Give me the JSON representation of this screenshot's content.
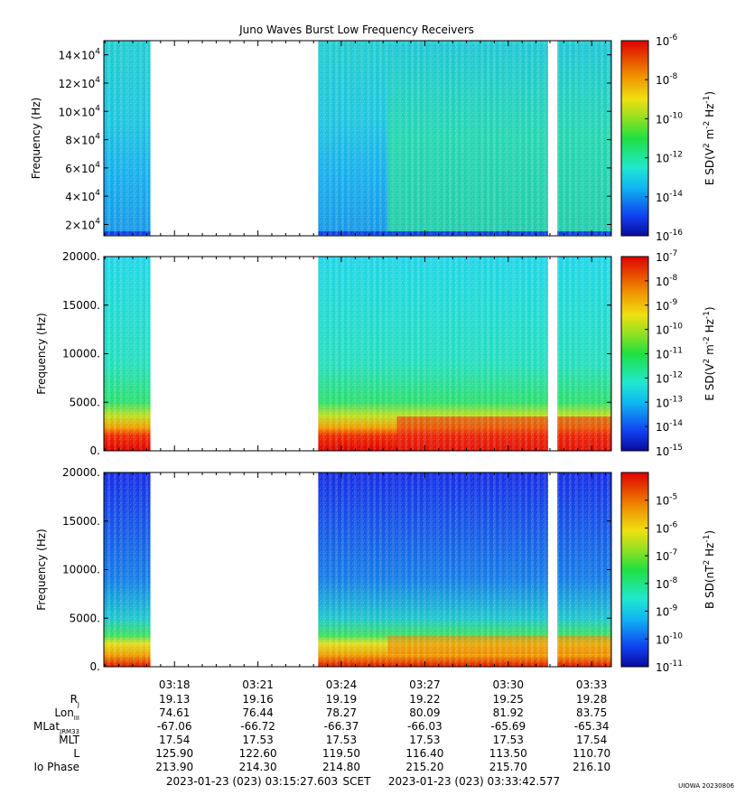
{
  "title": "Juno Waves Burst Low Frequency Receivers",
  "chart_data": [
    {
      "type": "heatmap",
      "panel": "top",
      "ylabel": "Frequency (Hz)",
      "ylim": [
        12000,
        150000
      ],
      "yticks": [
        20000,
        40000,
        60000,
        80000,
        100000,
        120000,
        140000
      ],
      "ytick_labels": [
        {
          "base": "2×10",
          "exp": "4"
        },
        {
          "base": "4×10",
          "exp": "4"
        },
        {
          "base": "6×10",
          "exp": "4"
        },
        {
          "base": "8×10",
          "exp": "4"
        },
        {
          "base": "10×10",
          "exp": "4"
        },
        {
          "base": "12×10",
          "exp": "4"
        },
        {
          "base": "14×10",
          "exp": "4"
        }
      ],
      "colorbar": {
        "label_parts": [
          "E SD(V",
          "2",
          " m",
          "-2",
          " Hz",
          "-1",
          ")"
        ],
        "scale": "log",
        "range_exp": [
          -16,
          -6
        ],
        "ticks": [
          {
            "base": "10",
            "exp": "-6"
          },
          {
            "base": "10",
            "exp": "-8"
          },
          {
            "base": "10",
            "exp": "-10"
          },
          {
            "base": "10",
            "exp": "-12"
          },
          {
            "base": "10",
            "exp": "-14"
          },
          {
            "base": "10",
            "exp": "-16"
          }
        ]
      },
      "data_gaps": [
        [
          "03:17:08",
          "03:23:10"
        ],
        [
          "03:31:26",
          "03:31:46"
        ]
      ],
      "dominant_colors": [
        "#22bfe6",
        "#2ed890",
        "#1aa6f2"
      ]
    },
    {
      "type": "heatmap",
      "panel": "middle",
      "ylabel": "Frequency (Hz)",
      "ylim": [
        0,
        20000
      ],
      "yticks": [
        0,
        5000,
        10000,
        15000,
        20000
      ],
      "ytick_labels": [
        "0.",
        "5000.",
        "10000.",
        "15000.",
        "20000."
      ],
      "colorbar": {
        "label_parts": [
          "E SD(V",
          "2",
          " m",
          "-2",
          " Hz",
          "-1",
          ")"
        ],
        "scale": "log",
        "range_exp": [
          -15,
          -7
        ],
        "ticks": [
          {
            "base": "10",
            "exp": "-7"
          },
          {
            "base": "10",
            "exp": "-8"
          },
          {
            "base": "10",
            "exp": "-9"
          },
          {
            "base": "10",
            "exp": "-10"
          },
          {
            "base": "10",
            "exp": "-11"
          },
          {
            "base": "10",
            "exp": "-12"
          },
          {
            "base": "10",
            "exp": "-13"
          },
          {
            "base": "10",
            "exp": "-14"
          },
          {
            "base": "10",
            "exp": "-15"
          }
        ]
      },
      "data_gaps": [
        [
          "03:17:08",
          "03:23:10"
        ],
        [
          "03:31:26",
          "03:31:46"
        ]
      ],
      "dominant_colors": [
        "#29e0dc",
        "#30e080",
        "#e81000",
        "#f0a000"
      ]
    },
    {
      "type": "heatmap",
      "panel": "bottom",
      "ylabel": "Frequency (Hz)",
      "ylim": [
        0,
        20000
      ],
      "yticks": [
        0,
        5000,
        10000,
        15000,
        20000
      ],
      "ytick_labels": [
        "0.",
        "5000.",
        "10000.",
        "15000.",
        "20000."
      ],
      "colorbar": {
        "label_parts": [
          "B SD(nT",
          "2",
          " Hz",
          "-1",
          ")"
        ],
        "scale": "log",
        "range_exp": [
          -11,
          -4
        ],
        "ticks": [
          {
            "base": "10",
            "exp": "-5"
          },
          {
            "base": "10",
            "exp": "-6"
          },
          {
            "base": "10",
            "exp": "-7"
          },
          {
            "base": "10",
            "exp": "-8"
          },
          {
            "base": "10",
            "exp": "-9"
          },
          {
            "base": "10",
            "exp": "-10"
          },
          {
            "base": "10",
            "exp": "-11"
          }
        ]
      },
      "data_gaps": [
        [
          "03:17:08",
          "03:23:10"
        ],
        [
          "03:31:26",
          "03:31:46"
        ]
      ],
      "dominant_colors": [
        "#1830e8",
        "#20a0e8",
        "#e01000",
        "#f0c000"
      ]
    }
  ],
  "time_axis": {
    "start": "03:15:27.603",
    "end": "03:33:42.577",
    "tick_labels": [
      "03:18",
      "03:21",
      "03:24",
      "03:27",
      "03:30",
      "03:33"
    ]
  },
  "ephemeris": {
    "rows": [
      {
        "label": "R",
        "sub": "J",
        "values": [
          "19.13",
          "19.16",
          "19.19",
          "19.22",
          "19.25",
          "19.28"
        ]
      },
      {
        "label": "Lon",
        "sub": "III",
        "values": [
          "74.61",
          "76.44",
          "78.27",
          "80.09",
          "81.92",
          "83.75"
        ]
      },
      {
        "label": "MLat",
        "sub": "JRM33",
        "values": [
          "-67.06",
          "-66.72",
          "-66.37",
          "-66.03",
          "-65.69",
          "-65.34"
        ]
      },
      {
        "label": "MLT",
        "sub": "",
        "values": [
          "17.54",
          "17.53",
          "17.53",
          "17.53",
          "17.53",
          "17.54"
        ]
      },
      {
        "label": "L",
        "sub": "",
        "values": [
          "125.90",
          "122.60",
          "119.50",
          "116.40",
          "113.50",
          "110.70"
        ]
      },
      {
        "label": "Io Phase",
        "sub": "",
        "values": [
          "213.90",
          "214.30",
          "214.80",
          "215.20",
          "215.70",
          "216.10"
        ]
      }
    ]
  },
  "footer": {
    "start_time": "2023-01-23 (023) 03:15:27.603",
    "scet": "SCET",
    "end_time": "2023-01-23 (023) 03:33:42.577",
    "credit": "UIOWA 20230806"
  }
}
